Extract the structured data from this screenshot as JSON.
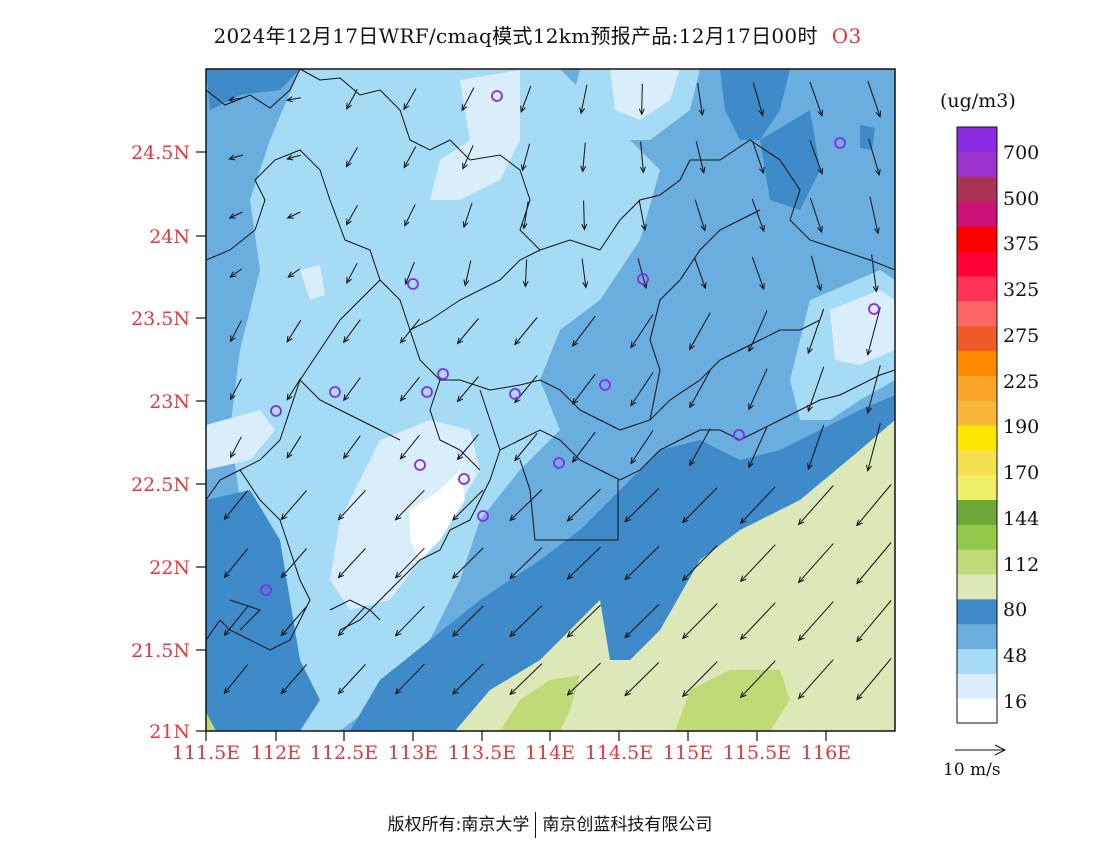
{
  "title": "2024年12月17日WRF/cmaq模式12km预报产品:12月17日00时",
  "species": "O3",
  "unit": "(ug/m3)",
  "reference_vector_label": "10 m/s",
  "copyright_left": "版权所有:南京大学",
  "copyright_right": "南京创蓝科技有限公司",
  "lat_labels": [
    "24.5N",
    "24N",
    "23.5N",
    "23N",
    "22.5N",
    "22N",
    "21.5N",
    "21N"
  ],
  "lon_labels": [
    "111.5E",
    "112E",
    "112.5E",
    "113E",
    "113.5E",
    "114E",
    "114.5E",
    "115E",
    "115.5E",
    "116E"
  ],
  "colorbar": {
    "levels": [
      "700",
      "500",
      "375",
      "325",
      "275",
      "225",
      "190",
      "170",
      "144",
      "112",
      "80",
      "48",
      "16"
    ],
    "colors_bottom_to_top": [
      "#ffffff",
      "#d9eefa",
      "#a5dbf5",
      "#6aaee0",
      "#3f8bc9",
      "#dce8b8",
      "#bfdb77",
      "#93c94b",
      "#6da83a",
      "#f0f068",
      "#f5e050",
      "#ffe600",
      "#f7b83a",
      "#f8a52a",
      "#ff8a00",
      "#ef5a2a",
      "#ff6666",
      "#ff3355",
      "#ff0033",
      "#ff0000",
      "#cc1177",
      "#aa3355",
      "#9933cc",
      "#8a2be2"
    ]
  },
  "map": {
    "colors": {
      "bg_mid": "#6aaee0",
      "deep": "#3f8bc9",
      "light": "#a5dbf5",
      "lighter": "#d9eefa",
      "white": "#ffffff",
      "land_green": "#dce8b8",
      "green": "#bfdb77"
    },
    "station_marker_color": "#8a2be2",
    "wind_arrow_color": "#111111",
    "boundary_color": "#111111"
  }
}
